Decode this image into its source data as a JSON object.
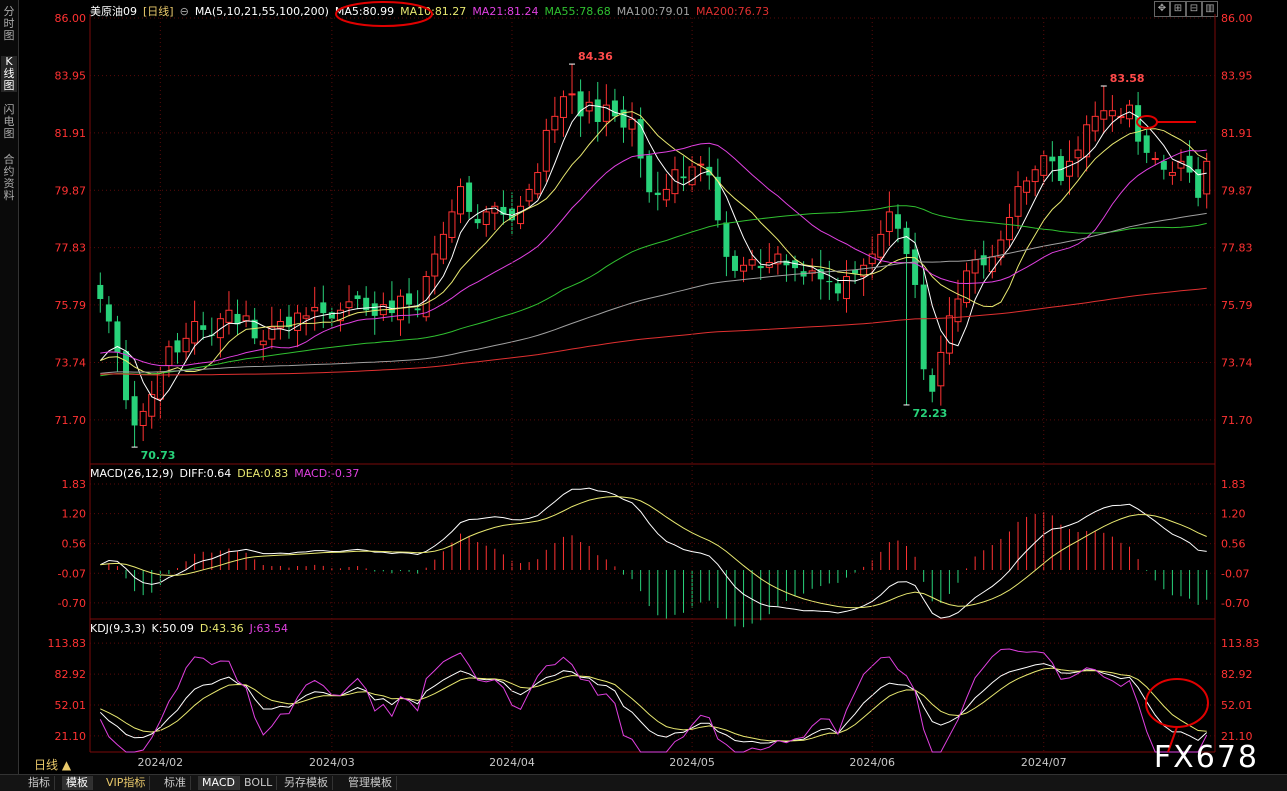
{
  "side_tabs": [
    {
      "label": "分时图",
      "active": false
    },
    {
      "label": "K线图",
      "active": true
    },
    {
      "label": "闪电图",
      "active": false
    },
    {
      "label": "合约资料",
      "active": false
    }
  ],
  "header": {
    "symbol": "美原油09",
    "period_tag": "[日线]",
    "ma_params": "MA(5,10,21,55,100,200)",
    "ma_values": [
      {
        "label": "MA5:80.99",
        "color": "#ffffff"
      },
      {
        "label": "MA10:81.27",
        "color": "#e8e870"
      },
      {
        "label": "MA21:81.24",
        "color": "#e040e0"
      },
      {
        "label": "MA55:78.68",
        "color": "#30c030"
      },
      {
        "label": "MA100:79.01",
        "color": "#a0a0a0"
      },
      {
        "label": "MA200:76.73",
        "color": "#e03030"
      }
    ]
  },
  "toolbar_icons": [
    "move-icon",
    "zoom-in-icon",
    "zoom-out-icon",
    "settings-icon"
  ],
  "colors": {
    "up": "#ff3232",
    "down": "#28d27a",
    "axis": "#ff3232",
    "grid": "#5a0a0a",
    "text": "#c8c8c8"
  },
  "chart_data": [
    {
      "type": "candlestick",
      "title": "美原油09 [日线]",
      "ylim": [
        70.2,
        86.0
      ],
      "y_ticks": [
        86.0,
        83.95,
        81.91,
        79.87,
        77.83,
        75.79,
        73.74,
        71.7
      ],
      "x_month_labels": [
        {
          "label": "2024/02",
          "index": 7
        },
        {
          "label": "2024/03",
          "index": 27
        },
        {
          "label": "2024/04",
          "index": 48
        },
        {
          "label": "2024/05",
          "index": 69
        },
        {
          "label": "2024/06",
          "index": 90
        },
        {
          "label": "2024/07",
          "index": 110
        }
      ],
      "annotations": [
        {
          "label": "84.36",
          "index": 55,
          "value": 84.36,
          "color": "#ff4a4a"
        },
        {
          "label": "83.58",
          "index": 117,
          "value": 83.58,
          "color": "#ff4a4a"
        },
        {
          "label": "70.73",
          "index": 4,
          "value": 70.73,
          "color": "#28d27a"
        },
        {
          "label": "72.23",
          "index": 94,
          "value": 72.23,
          "color": "#28d27a"
        }
      ],
      "closes": [
        76.0,
        75.2,
        74.1,
        72.4,
        71.5,
        72.0,
        72.6,
        73.4,
        74.3,
        74.1,
        74.6,
        75.2,
        74.9,
        74.7,
        75.3,
        75.6,
        75.1,
        75.4,
        74.6,
        74.5,
        75.0,
        75.2,
        75.0,
        75.5,
        75.4,
        75.7,
        75.5,
        75.3,
        75.6,
        75.9,
        76.0,
        75.6,
        75.4,
        75.8,
        75.5,
        76.1,
        75.8,
        75.6,
        76.8,
        77.6,
        78.3,
        79.1,
        80.0,
        79.1,
        78.7,
        79.1,
        79.3,
        79.0,
        78.8,
        79.3,
        79.9,
        80.5,
        82.0,
        82.5,
        83.2,
        83.3,
        82.5,
        83.0,
        82.3,
        82.9,
        82.5,
        82.1,
        82.4,
        81.0,
        79.8,
        79.7,
        79.9,
        80.6,
        80.3,
        80.7,
        80.8,
        80.4,
        78.8,
        77.5,
        77.0,
        77.2,
        77.4,
        77.1,
        77.3,
        77.6,
        77.2,
        77.1,
        76.8,
        77.0,
        76.7,
        76.6,
        76.2,
        76.8,
        76.9,
        77.2,
        77.6,
        78.3,
        79.1,
        78.5,
        77.6,
        76.5,
        73.5,
        72.7,
        74.1,
        75.4,
        76.0,
        77.0,
        77.4,
        77.2,
        77.5,
        78.1,
        78.9,
        80.0,
        80.2,
        80.6,
        81.1,
        80.9,
        80.2,
        80.9,
        81.3,
        82.2,
        82.5,
        82.7,
        82.7,
        82.5,
        82.9,
        81.6,
        81.2,
        81.0,
        80.6,
        80.5,
        80.9,
        80.5,
        79.6,
        80.9
      ],
      "ma_series_names": [
        "MA5",
        "MA10",
        "MA21",
        "MA55",
        "MA100",
        "MA200"
      ]
    },
    {
      "type": "macd",
      "title": "MACD(26,12,9)",
      "values_text": [
        {
          "label": "DIFF:0.64",
          "color": "#ffffff"
        },
        {
          "label": "DEA:0.83",
          "color": "#e8e870"
        },
        {
          "label": "MACD:-0.37",
          "color": "#e040e0"
        }
      ],
      "ylim": [
        -1.0,
        2.0
      ],
      "y_ticks": [
        1.83,
        1.2,
        0.56,
        -0.07,
        -0.7
      ]
    },
    {
      "type": "kdj",
      "title": "KDJ(9,3,3)",
      "values_text": [
        {
          "label": "K:50.09",
          "color": "#ffffff"
        },
        {
          "label": "D:43.36",
          "color": "#e8e870"
        },
        {
          "label": "J:63.54",
          "color": "#e040e0"
        }
      ],
      "ylim": [
        5,
        125
      ],
      "y_ticks": [
        113.83,
        82.92,
        52.01,
        21.1
      ]
    }
  ],
  "period_label": "日线 ▲",
  "bottom_tabs": [
    {
      "label": "指标",
      "active": false,
      "vip": false
    },
    {
      "label": "模板",
      "active": true,
      "vip": false
    },
    {
      "label": "VIP指标",
      "active": false,
      "vip": true
    },
    {
      "label": "标准",
      "active": false,
      "vip": false
    },
    {
      "label": "MACD",
      "active": true,
      "vip": false
    },
    {
      "label": "BOLL",
      "active": false,
      "vip": false
    },
    {
      "label": "另存模板",
      "active": false,
      "vip": false
    },
    {
      "label": "管理模板",
      "active": false,
      "vip": false
    }
  ],
  "watermark": "FX678"
}
